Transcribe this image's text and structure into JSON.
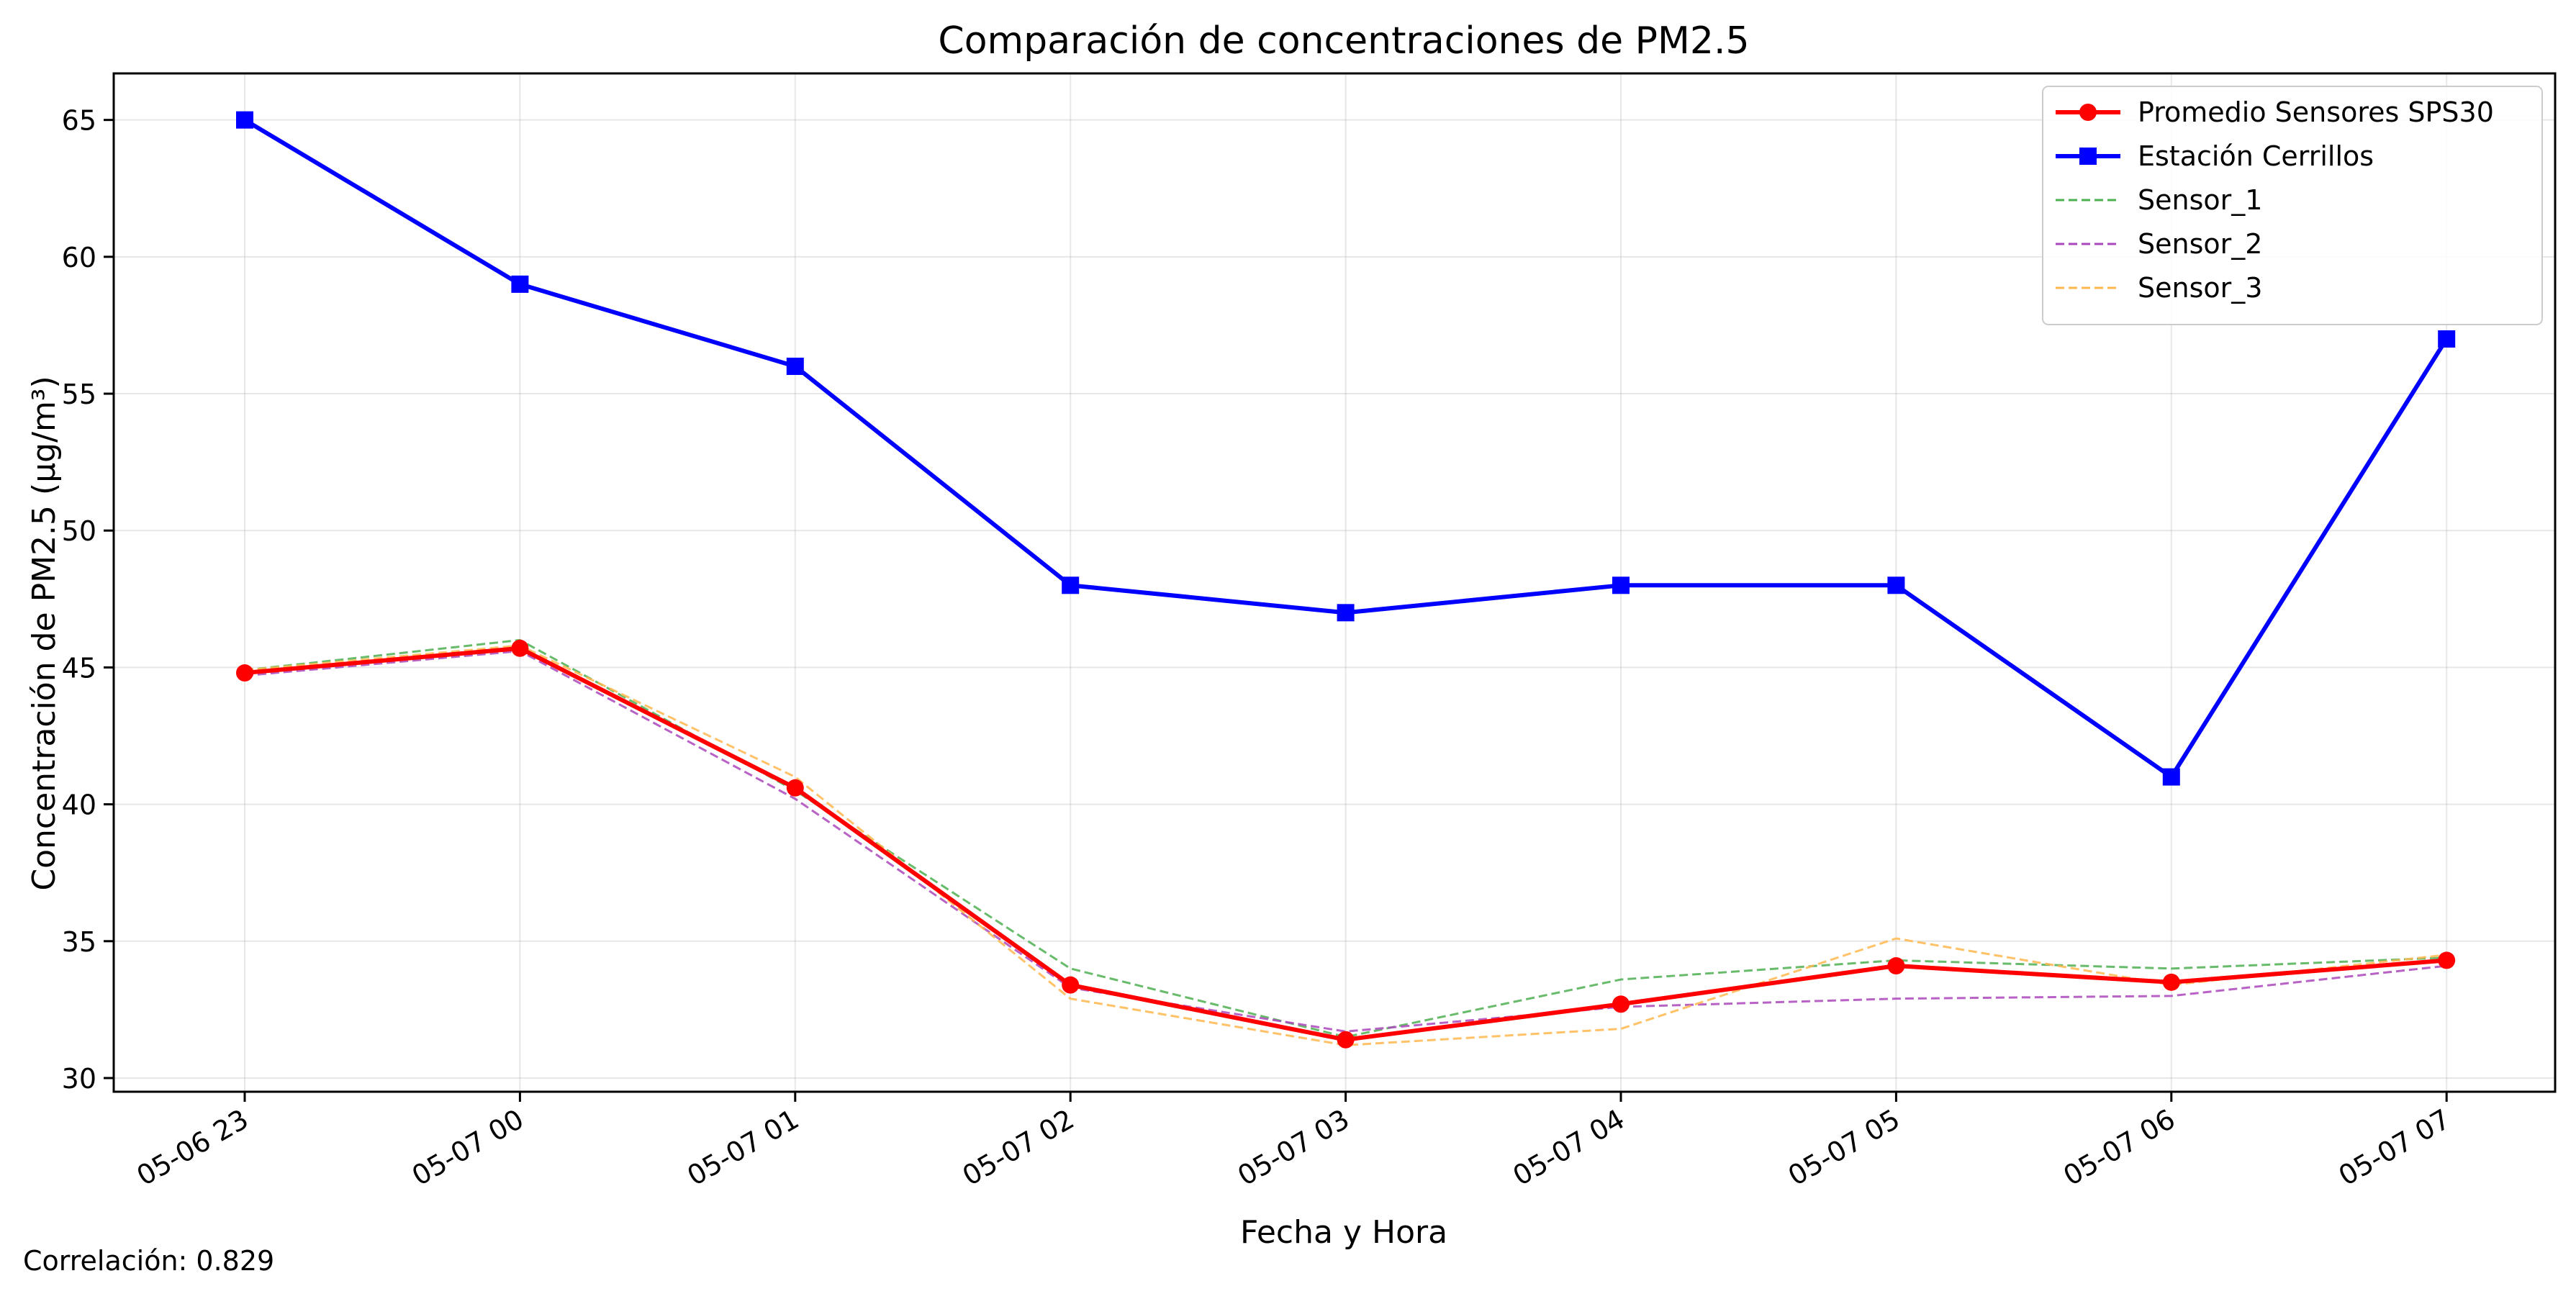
{
  "chart_data": {
    "type": "line",
    "title": "Comparación de concentraciones de PM2.5",
    "xlabel": "Fecha y Hora",
    "ylabel": "Concentración de PM2.5 (µg/m³)",
    "categories": [
      "05-06 23",
      "05-07 00",
      "05-07 01",
      "05-07 02",
      "05-07 03",
      "05-07 04",
      "05-07 05",
      "05-07 06",
      "05-07 07"
    ],
    "ylim": [
      29.5,
      66.7
    ],
    "yticks": [
      30,
      35,
      40,
      45,
      50,
      55,
      60,
      65
    ],
    "grid": true,
    "legend_position": "top-right",
    "series": [
      {
        "name": "Promedio Sensores SPS30",
        "color": "#ff0000",
        "marker": "circle",
        "style": "solid",
        "bold": true,
        "values": [
          44.8,
          45.7,
          40.6,
          33.4,
          31.4,
          32.7,
          34.1,
          33.5,
          34.3
        ]
      },
      {
        "name": "Estación Cerrillos",
        "color": "#0000ff",
        "marker": "square",
        "style": "solid",
        "bold": true,
        "values": [
          65,
          59,
          56,
          48,
          47,
          48,
          48,
          41,
          57
        ]
      },
      {
        "name": "Sensor_1",
        "color": "#4caf50",
        "marker": "none",
        "style": "dashed",
        "bold": false,
        "values": [
          44.9,
          46.0,
          40.5,
          34.0,
          31.5,
          33.6,
          34.3,
          34.0,
          34.4
        ]
      },
      {
        "name": "Sensor_2",
        "color": "#ab47bc",
        "marker": "none",
        "style": "dashed",
        "bold": false,
        "values": [
          44.7,
          45.6,
          40.2,
          33.3,
          31.7,
          32.6,
          32.9,
          33.0,
          34.1
        ]
      },
      {
        "name": "Sensor_3",
        "color": "#ffb74d",
        "marker": "none",
        "style": "dashed",
        "bold": false,
        "values": [
          44.9,
          45.8,
          41.0,
          32.9,
          31.2,
          31.8,
          35.1,
          33.4,
          34.5
        ]
      }
    ]
  },
  "footer": {
    "correlation_label": "Correlación: 0.829"
  }
}
